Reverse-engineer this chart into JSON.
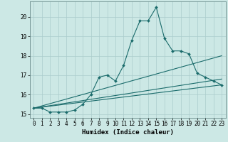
{
  "xlabel": "Humidex (Indice chaleur)",
  "bg_color": "#cce8e5",
  "line_color": "#1a6b6b",
  "grid_color": "#aacccc",
  "xlim": [
    -0.5,
    23.5
  ],
  "ylim": [
    14.8,
    20.8
  ],
  "yticks": [
    15,
    16,
    17,
    18,
    19,
    20
  ],
  "xticks": [
    0,
    1,
    2,
    3,
    4,
    5,
    6,
    7,
    8,
    9,
    10,
    11,
    12,
    13,
    14,
    15,
    16,
    17,
    18,
    19,
    20,
    21,
    22,
    23
  ],
  "series": [
    {
      "x": [
        0,
        1,
        2,
        3,
        4,
        5,
        6,
        7,
        8,
        9,
        10,
        11,
        12,
        13,
        14,
        15,
        16,
        17,
        18,
        19,
        20,
        21,
        22,
        23
      ],
      "y": [
        15.3,
        15.3,
        15.1,
        15.1,
        15.1,
        15.2,
        15.5,
        16.0,
        16.9,
        17.0,
        16.7,
        17.5,
        18.8,
        19.8,
        19.8,
        20.5,
        18.9,
        18.25,
        18.25,
        18.1,
        17.1,
        16.9,
        16.7,
        16.5
      ],
      "has_markers": true
    },
    {
      "x": [
        0,
        23
      ],
      "y": [
        15.3,
        18.0
      ],
      "has_markers": false
    },
    {
      "x": [
        0,
        23
      ],
      "y": [
        15.3,
        16.8
      ],
      "has_markers": false
    },
    {
      "x": [
        0,
        23
      ],
      "y": [
        15.3,
        16.5
      ],
      "has_markers": false
    }
  ]
}
